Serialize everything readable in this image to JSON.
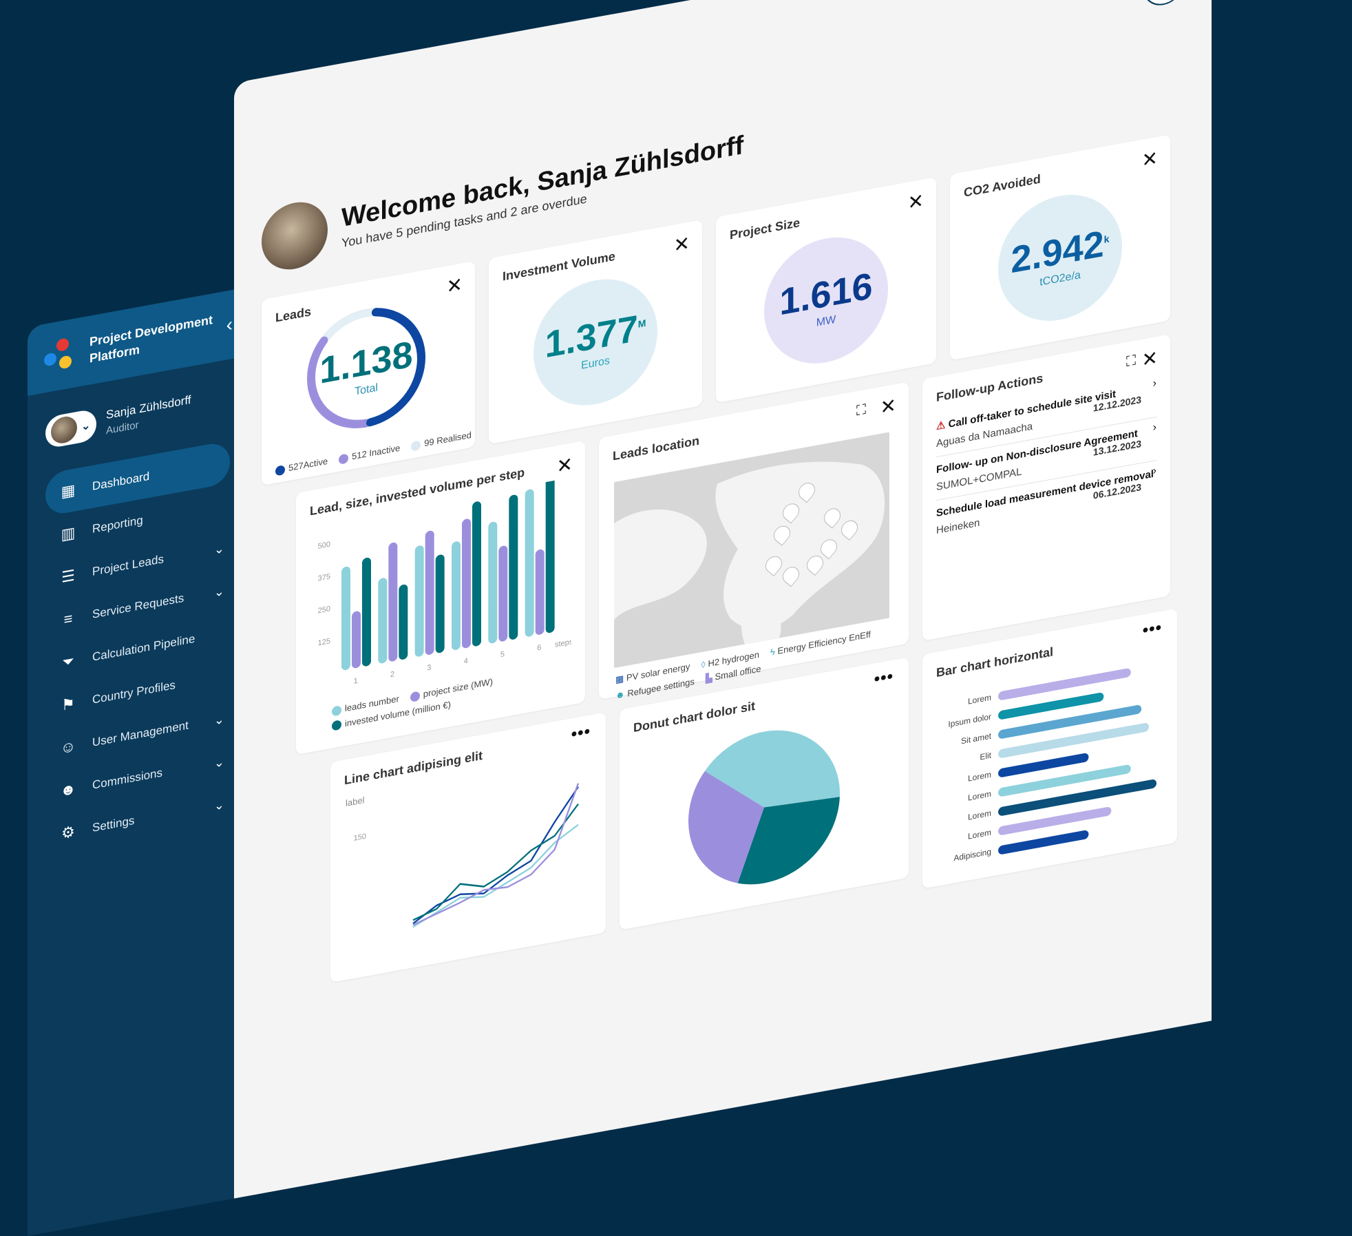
{
  "app": {
    "title": "Project Development Platform"
  },
  "user": {
    "name": "Sanja Zühlsdorff",
    "role": "Auditor"
  },
  "nav": [
    {
      "label": "Dashboard",
      "icon": "dashboard-icon",
      "active": true
    },
    {
      "label": "Reporting",
      "icon": "chart-icon"
    },
    {
      "label": "Project Leads",
      "icon": "document-icon",
      "expandable": true
    },
    {
      "label": "Service Requests",
      "icon": "list-edit-icon",
      "expandable": true
    },
    {
      "label": "Calculation Pipeline",
      "icon": "filter-icon"
    },
    {
      "label": "Country Profiles",
      "icon": "flag-icon"
    },
    {
      "label": "User Management",
      "icon": "user-settings-icon",
      "expandable": true
    },
    {
      "label": "Commissions",
      "icon": "group-icon",
      "expandable": true
    },
    {
      "label": "Settings",
      "icon": "gear-icon",
      "expandable": true
    }
  ],
  "welcome": {
    "title": "Welcome back, Sanja Zühlsdorff",
    "subtitle": "You have 5 pending tasks and 2 are overdue"
  },
  "kpis": {
    "leads": {
      "title": "Leads",
      "value": "1.138",
      "label": "Total",
      "legend": [
        {
          "text": "527Active",
          "color": "#0d47a1"
        },
        {
          "text": "512 Inactive",
          "color": "#9b8fdd"
        },
        {
          "text": "99 Realised",
          "color": "#dde9f2"
        }
      ]
    },
    "investment": {
      "title": "Investment Volume",
      "value": "1.377",
      "suffix": "M",
      "unit": "Euros"
    },
    "project_size": {
      "title": "Project Size",
      "value": "1.616",
      "unit": "MW"
    },
    "co2": {
      "title": "CO2 Avoided",
      "value": "2.942",
      "suffix": "k",
      "unit": "tCO2e/a"
    }
  },
  "follow_up": {
    "title": "Follow-up Actions",
    "items": [
      {
        "title": "Call off-taker to schedule site visit",
        "date": "12.12.2023",
        "sub": "Aguas da Namaacha",
        "warning": true
      },
      {
        "title": "Follow- up on Non-disclosure Agreement",
        "date": "13.12.2023",
        "sub": "SUMOL+COMPAL"
      },
      {
        "title": "Schedule load measurement device removal",
        "date": "06.12.2023",
        "sub": "Heineken"
      }
    ]
  },
  "map": {
    "title": "Leads location",
    "legend": [
      {
        "text": "PV solar energy",
        "icon": "solar-panel-icon"
      },
      {
        "text": "H2 hydrogen",
        "icon": "droplet-icon"
      },
      {
        "text": "Energy Efficiency EnEff",
        "icon": "lightning-icon"
      },
      {
        "text": "Refugee settings",
        "icon": "people-icon"
      },
      {
        "text": "Small office",
        "icon": "building-icon"
      }
    ]
  },
  "chart_data": [
    {
      "type": "bar",
      "title": "Lead, size, invested volume per step",
      "xlabel": "steps",
      "categories": [
        "1",
        "2",
        "3",
        "4",
        "5",
        "6"
      ],
      "yticks": [
        125,
        250,
        375,
        500
      ],
      "ylim": [
        0,
        560
      ],
      "series": [
        {
          "name": "leads number",
          "color": "#8dd1dc",
          "values": [
            400,
            330,
            430,
            420,
            470,
            570
          ]
        },
        {
          "name": "project size (MW)",
          "color": "#9b8fdd",
          "values": [
            220,
            460,
            480,
            500,
            370,
            330
          ]
        },
        {
          "name": "invested volume (million €)",
          "color": "#00707a",
          "values": [
            420,
            290,
            380,
            560,
            560,
            620
          ]
        }
      ]
    },
    {
      "type": "line",
      "title": "Line chart adipising elit",
      "ylabel": "label",
      "yticks": [
        150
      ],
      "ylim": [
        0,
        180
      ],
      "x": [
        1,
        2,
        3,
        4,
        5,
        6,
        7,
        8
      ],
      "series": [
        {
          "values": [
            10,
            30,
            40,
            35,
            55,
            70,
            120,
            165
          ],
          "color": "#0d47a1"
        },
        {
          "values": [
            15,
            25,
            55,
            45,
            60,
            85,
            100,
            140
          ],
          "color": "#00707a"
        },
        {
          "values": [
            5,
            20,
            35,
            30,
            45,
            60,
            90,
            110
          ],
          "color": "#8dd1dc"
        },
        {
          "values": [
            8,
            18,
            28,
            40,
            38,
            50,
            80,
            170
          ],
          "color": "#9b8fdd"
        }
      ]
    },
    {
      "type": "pie",
      "title": "Donut chart dolor sit",
      "series": [
        {
          "values": [
            40,
            30,
            30
          ],
          "colors": [
            "#8dd1dc",
            "#00707a",
            "#9b8fdd"
          ]
        }
      ]
    },
    {
      "type": "bar",
      "orientation": "horizontal",
      "title": "Bar chart horizontal",
      "categories": [
        "Lorem",
        "Ipsum dolor",
        "Sit amet",
        "Elit",
        "Lorem",
        "Lorem",
        "Lorem",
        "Lorem",
        "Adipiscing"
      ],
      "series": [
        {
          "values": [
            88,
            70,
            95,
            100,
            60,
            88,
            105,
            75,
            60
          ],
          "colors": [
            "#b9aee8",
            "#0e93a8",
            "#5aa6d0",
            "#b7dbe8",
            "#0d47a1",
            "#8dd1dc",
            "#0b4f7a",
            "#b9aee8",
            "#0d47a1"
          ]
        }
      ]
    }
  ]
}
